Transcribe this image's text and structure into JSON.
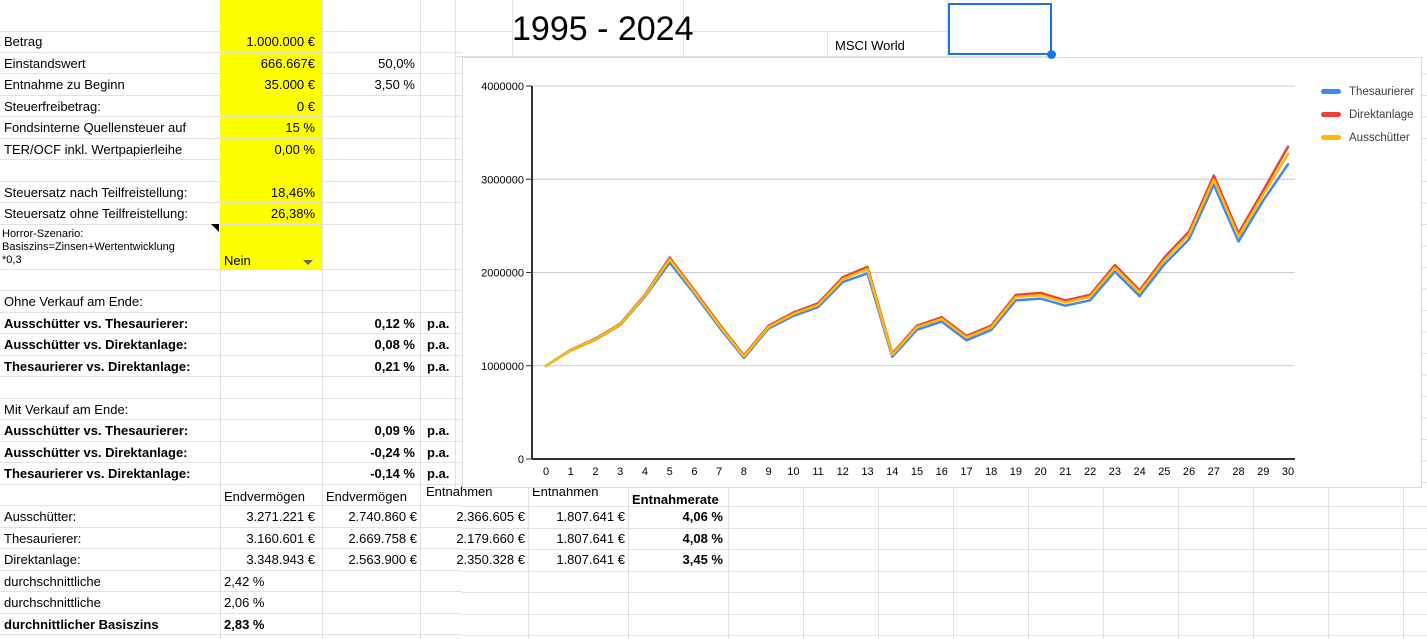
{
  "title_cell": "1995 - 2024",
  "index_label": "MSCI World",
  "params": [
    {
      "label": "Betrag",
      "value": "1.000.000 €",
      "pct": ""
    },
    {
      "label": "Einstandswert",
      "value": "666.667€",
      "pct": "50,0%"
    },
    {
      "label": "Entnahme zu Beginn",
      "value": "35.000 €",
      "pct": "3,50 %"
    },
    {
      "label": "Steuerfreibetrag:",
      "value": "0 €",
      "pct": ""
    },
    {
      "label": "Fondsinterne Quellensteuer auf",
      "value": "15 %",
      "pct": ""
    },
    {
      "label": "TER/OCF inkl. Wertpapierleihe",
      "value": "0,00 %",
      "pct": ""
    }
  ],
  "tax_rates": [
    {
      "label": "Steuersatz nach Teilfreistellung:",
      "value": "18,46%"
    },
    {
      "label": "Steuersatz ohne Teilfreistellung:",
      "value": "26,38%"
    }
  ],
  "horror_scenario": {
    "label_line1": "Horror-Szenario:",
    "label_line2": "Basiszins=Zinsen+Wertentwicklung",
    "label_line3": "*0,3",
    "value": "Nein"
  },
  "comparison_no_sale": {
    "title": "Ohne Verkauf am Ende:",
    "rows": [
      {
        "label": "Ausschütter vs. Thesaurierer:",
        "value": "0,12 %",
        "unit": "p.a."
      },
      {
        "label": "Ausschütter vs. Direktanlage:",
        "value": "0,08 %",
        "unit": "p.a."
      },
      {
        "label": "Thesaurierer vs. Direktanlage:",
        "value": "0,21 %",
        "unit": "p.a."
      }
    ]
  },
  "comparison_with_sale": {
    "title": "Mit Verkauf am Ende:",
    "rows": [
      {
        "label": "Ausschütter vs. Thesaurierer:",
        "value": "0,09 %",
        "unit": "p.a."
      },
      {
        "label": "Ausschütter vs. Direktanlage:",
        "value": "-0,24 %",
        "unit": "p.a."
      },
      {
        "label": "Thesaurierer vs. Direktanlage:",
        "value": "-0,14 %",
        "unit": "p.a."
      }
    ]
  },
  "results": {
    "headers": [
      "Endvermögen",
      "Endvermögen",
      "Entnahmen",
      "Entnahmen",
      "Entnahmerate"
    ],
    "rows": [
      {
        "label": "Ausschütter:",
        "c1": "3.271.221 €",
        "c2": "2.740.860 €",
        "c3": "2.366.605 €",
        "c4": "1.807.641 €",
        "rate": "4,06 %"
      },
      {
        "label": "Thesaurierer:",
        "c1": "3.160.601 €",
        "c2": "2.669.758 €",
        "c3": "2.179.660 €",
        "c4": "1.807.641 €",
        "rate": "4,08 %"
      },
      {
        "label": "Direktanlage:",
        "c1": "3.348.943 €",
        "c2": "2.563.900 €",
        "c3": "2.350.328 €",
        "c4": "1.807.641 €",
        "rate": "3,45 %"
      }
    ]
  },
  "averages": [
    {
      "label": "durchschnittliche",
      "value": "2,42 %"
    },
    {
      "label": "durchschnittliche",
      "value": "2,06 %"
    },
    {
      "label": "durchnittlicher Basiszins",
      "value": "2,83 %"
    }
  ],
  "chart_data": {
    "type": "line",
    "title": "1995 - 2024",
    "xlabel": "",
    "ylabel": "",
    "x": [
      0,
      1,
      2,
      3,
      4,
      5,
      6,
      7,
      8,
      9,
      10,
      11,
      12,
      13,
      14,
      15,
      16,
      17,
      18,
      19,
      20,
      21,
      22,
      23,
      24,
      25,
      26,
      27,
      28,
      29,
      30
    ],
    "y_ticks": [
      0,
      1000000,
      2000000,
      3000000,
      4000000
    ],
    "ylim": [
      0,
      4000000
    ],
    "grid": true,
    "legend_position": "right",
    "series": [
      {
        "name": "Thesaurierer",
        "color": "#4285f4",
        "values": [
          1000000,
          1163000,
          1279000,
          1436000,
          1741000,
          2106000,
          1771000,
          1416000,
          1083000,
          1399000,
          1533000,
          1629000,
          1898000,
          1991000,
          1096000,
          1386000,
          1473000,
          1273000,
          1383000,
          1702000,
          1720000,
          1644000,
          1702000,
          2010000,
          1747000,
          2087000,
          2357000,
          2942000,
          2332000,
          2774000,
          3160601
        ]
      },
      {
        "name": "Direktanlage",
        "color": "#ea4335",
        "values": [
          1000000,
          1170000,
          1290000,
          1450000,
          1760000,
          2160000,
          1810000,
          1450000,
          1110000,
          1430000,
          1570000,
          1670000,
          1950000,
          2060000,
          1130000,
          1430000,
          1520000,
          1320000,
          1430000,
          1760000,
          1780000,
          1700000,
          1760000,
          2080000,
          1810000,
          2160000,
          2440000,
          3040000,
          2420000,
          2880000,
          3348943
        ]
      },
      {
        "name": "Ausschütter",
        "color": "#fbbc04",
        "values": [
          1000000,
          1166000,
          1284000,
          1443000,
          1751000,
          2141000,
          1794000,
          1436000,
          1099000,
          1416000,
          1554000,
          1652000,
          1928000,
          2036000,
          1117000,
          1413000,
          1501000,
          1303000,
          1411000,
          1737000,
          1757000,
          1678000,
          1738000,
          2052000,
          1785000,
          2130000,
          2406000,
          2996000,
          2385000,
          2836000,
          3271221
        ]
      }
    ]
  }
}
